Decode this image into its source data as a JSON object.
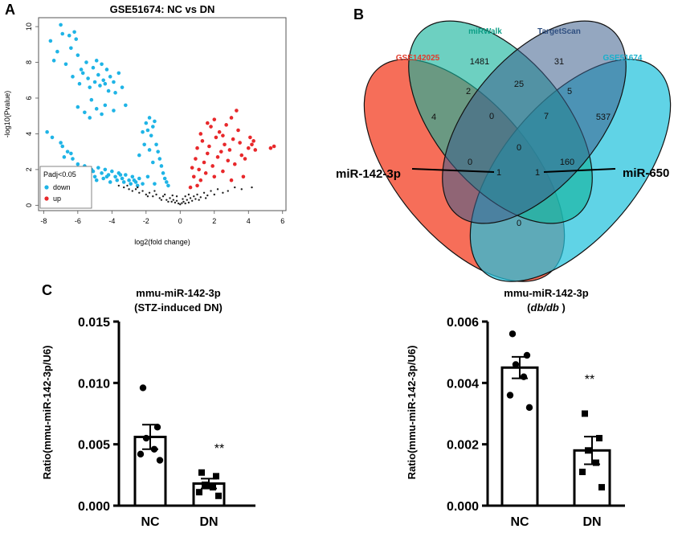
{
  "panels": {
    "a": "A",
    "b": "B",
    "c": "C"
  },
  "chart_data": [
    {
      "id": "volcano",
      "type": "scatter",
      "title": "GSE51674: NC vs DN",
      "xlabel": "log2(fold change)",
      "ylabel": "-log10(Pvalue)",
      "xlim": [
        -8.3,
        6.2
      ],
      "ylim": [
        -0.3,
        10.5
      ],
      "xticks": [
        -8,
        -6,
        -4,
        -2,
        0,
        2,
        4,
        6
      ],
      "yticks": [
        0,
        2,
        4,
        6,
        8,
        10
      ],
      "legend": {
        "title": "Padj<0.05",
        "position": "bottom-left",
        "entries": [
          {
            "label": "down",
            "color": "#1fb4e6"
          },
          {
            "label": "up",
            "color": "#e8282b"
          }
        ]
      },
      "series": [
        {
          "name": "down",
          "color": "#1fb4e6",
          "points": [
            [
              -7.6,
              9.2
            ],
            [
              -7.4,
              8.1
            ],
            [
              -7.2,
              8.6
            ],
            [
              -7.0,
              10.1
            ],
            [
              -6.9,
              9.6
            ],
            [
              -6.7,
              7.9
            ],
            [
              -6.5,
              9.5
            ],
            [
              -6.4,
              8.8
            ],
            [
              -6.2,
              9.7
            ],
            [
              -6.1,
              9.3
            ],
            [
              -6.0,
              8.4
            ],
            [
              -5.8,
              7.6
            ],
            [
              -6.3,
              7.2
            ],
            [
              -5.9,
              6.8
            ],
            [
              -5.7,
              7.4
            ],
            [
              -5.5,
              8.0
            ],
            [
              -5.4,
              7.1
            ],
            [
              -5.3,
              6.6
            ],
            [
              -5.1,
              7.7
            ],
            [
              -5.0,
              6.9
            ],
            [
              -4.9,
              8.1
            ],
            [
              -4.8,
              7.3
            ],
            [
              -4.7,
              6.7
            ],
            [
              -4.6,
              7.9
            ],
            [
              -4.5,
              7.0
            ],
            [
              -4.4,
              6.8
            ],
            [
              -4.3,
              7.6
            ],
            [
              -4.2,
              6.4
            ],
            [
              -4.1,
              7.2
            ],
            [
              -3.9,
              6.9
            ],
            [
              -3.8,
              6.3
            ],
            [
              -3.6,
              7.4
            ],
            [
              -3.4,
              6.6
            ],
            [
              -3.2,
              5.6
            ],
            [
              -5.2,
              5.9
            ],
            [
              -4.9,
              5.4
            ],
            [
              -4.6,
              5.1
            ],
            [
              -6.0,
              5.5
            ],
            [
              -5.6,
              5.2
            ],
            [
              -5.3,
              4.9
            ],
            [
              -4.4,
              5.6
            ],
            [
              -3.9,
              5.3
            ],
            [
              -2.0,
              4.6
            ],
            [
              -1.8,
              4.9
            ],
            [
              -1.6,
              4.4
            ],
            [
              -1.9,
              4.2
            ],
            [
              -1.5,
              4.7
            ],
            [
              -1.7,
              3.9
            ],
            [
              -2.2,
              4.1
            ],
            [
              -1.4,
              3.4
            ],
            [
              -1.3,
              3.0
            ],
            [
              -1.2,
              2.6
            ],
            [
              -1.1,
              2.2
            ],
            [
              -1.0,
              1.8
            ],
            [
              -0.9,
              1.5
            ],
            [
              -0.8,
              1.3
            ],
            [
              -0.7,
              1.1
            ],
            [
              -1.6,
              2.4
            ],
            [
              -1.8,
              3.1
            ],
            [
              -2.1,
              3.4
            ],
            [
              -2.4,
              2.8
            ],
            [
              -7.8,
              4.1
            ],
            [
              -7.5,
              3.8
            ],
            [
              -6.9,
              3.3
            ],
            [
              -6.6,
              3.0
            ],
            [
              -6.3,
              2.6
            ],
            [
              -6.0,
              2.3
            ],
            [
              -5.8,
              2.0
            ],
            [
              -5.6,
              2.2
            ],
            [
              -5.4,
              1.8
            ],
            [
              -5.2,
              2.0
            ],
            [
              -5.0,
              1.6
            ],
            [
              -4.8,
              2.1
            ],
            [
              -4.6,
              1.8
            ],
            [
              -4.4,
              2.0
            ],
            [
              -4.2,
              1.7
            ],
            [
              -4.0,
              1.9
            ],
            [
              -3.8,
              1.6
            ],
            [
              -3.6,
              1.8
            ],
            [
              -3.4,
              1.5
            ],
            [
              -3.2,
              1.7
            ],
            [
              -3.0,
              1.4
            ],
            [
              -2.8,
              1.6
            ],
            [
              -2.6,
              1.3
            ],
            [
              -2.4,
              1.5
            ],
            [
              -2.2,
              1.2
            ],
            [
              -5.9,
              1.7
            ],
            [
              -5.5,
              1.5
            ],
            [
              -4.9,
              1.4
            ],
            [
              -4.5,
              1.5
            ],
            [
              -4.1,
              1.3
            ],
            [
              -3.7,
              1.4
            ],
            [
              -3.3,
              1.3
            ],
            [
              -2.9,
              1.2
            ],
            [
              -2.5,
              1.1
            ],
            [
              -1.9,
              1.6
            ],
            [
              -1.5,
              1.2
            ],
            [
              -7.0,
              3.5
            ],
            [
              -6.4,
              2.9
            ],
            [
              -6.8,
              2.7
            ],
            [
              -5.1,
              1.9
            ],
            [
              -4.3,
              1.6
            ],
            [
              -3.5,
              1.7
            ],
            [
              -2.7,
              1.4
            ]
          ]
        },
        {
          "name": "up",
          "color": "#e8282b",
          "points": [
            [
              0.6,
              1.0
            ],
            [
              0.8,
              1.6
            ],
            [
              0.9,
              2.6
            ],
            [
              1.0,
              3.2
            ],
            [
              1.1,
              2.0
            ],
            [
              1.2,
              1.4
            ],
            [
              1.3,
              3.6
            ],
            [
              1.4,
              2.4
            ],
            [
              1.5,
              1.8
            ],
            [
              1.6,
              2.9
            ],
            [
              1.7,
              3.3
            ],
            [
              1.8,
              4.4
            ],
            [
              1.9,
              2.2
            ],
            [
              2.0,
              1.6
            ],
            [
              2.1,
              3.8
            ],
            [
              2.2,
              2.7
            ],
            [
              2.3,
              4.1
            ],
            [
              2.4,
              3.0
            ],
            [
              2.5,
              1.9
            ],
            [
              2.6,
              3.4
            ],
            [
              2.7,
              4.5
            ],
            [
              2.8,
              2.5
            ],
            [
              2.9,
              3.1
            ],
            [
              3.0,
              4.9
            ],
            [
              3.1,
              3.7
            ],
            [
              3.2,
              2.3
            ],
            [
              3.3,
              5.3
            ],
            [
              3.4,
              4.2
            ],
            [
              3.5,
              3.5
            ],
            [
              3.6,
              2.8
            ],
            [
              3.7,
              1.6
            ],
            [
              3.8,
              2.6
            ],
            [
              4.0,
              3.2
            ],
            [
              4.1,
              3.8
            ],
            [
              4.2,
              3.4
            ],
            [
              4.3,
              3.6
            ],
            [
              4.4,
              3.1
            ],
            [
              5.3,
              3.2
            ],
            [
              5.5,
              3.3
            ],
            [
              0.7,
              2.1
            ],
            [
              1.2,
              4.0
            ],
            [
              1.6,
              4.6
            ],
            [
              2.0,
              4.8
            ],
            [
              2.5,
              3.9
            ],
            [
              3.0,
              1.4
            ],
            [
              1.0,
              1.1
            ]
          ]
        },
        {
          "name": "ns",
          "color": "#222222",
          "points": [
            [
              -3.6,
              1.1
            ],
            [
              -3.3,
              1.0
            ],
            [
              -3.0,
              0.9
            ],
            [
              -2.8,
              0.8
            ],
            [
              -2.6,
              0.9
            ],
            [
              -2.4,
              0.7
            ],
            [
              -2.2,
              0.8
            ],
            [
              -2.0,
              0.6
            ],
            [
              -1.8,
              0.7
            ],
            [
              -1.6,
              0.5
            ],
            [
              -1.4,
              0.6
            ],
            [
              -1.2,
              0.4
            ],
            [
              -1.0,
              0.5
            ],
            [
              -0.8,
              0.3
            ],
            [
              -0.6,
              0.4
            ],
            [
              -0.5,
              0.2
            ],
            [
              -0.4,
              0.3
            ],
            [
              -0.3,
              0.15
            ],
            [
              -0.2,
              0.25
            ],
            [
              -0.1,
              0.1
            ],
            [
              0.0,
              0.05
            ],
            [
              0.1,
              0.12
            ],
            [
              0.2,
              0.2
            ],
            [
              0.3,
              0.1
            ],
            [
              0.4,
              0.3
            ],
            [
              0.5,
              0.15
            ],
            [
              0.6,
              0.4
            ],
            [
              0.7,
              0.25
            ],
            [
              0.8,
              0.5
            ],
            [
              0.9,
              0.35
            ],
            [
              1.0,
              0.6
            ],
            [
              1.2,
              0.45
            ],
            [
              1.4,
              0.7
            ],
            [
              1.6,
              0.55
            ],
            [
              1.8,
              0.8
            ],
            [
              2.0,
              0.6
            ],
            [
              2.2,
              0.9
            ],
            [
              2.5,
              0.7
            ],
            [
              2.8,
              0.8
            ],
            [
              3.2,
              1.0
            ],
            [
              3.6,
              0.9
            ],
            [
              -1.1,
              0.3
            ],
            [
              -0.7,
              0.2
            ],
            [
              -0.9,
              0.6
            ],
            [
              -1.5,
              0.8
            ],
            [
              -1.9,
              0.5
            ],
            [
              0.3,
              0.5
            ],
            [
              0.5,
              0.6
            ],
            [
              1.1,
              0.3
            ],
            [
              1.5,
              0.4
            ],
            [
              -2.5,
              1.0
            ],
            [
              -3.1,
              1.1
            ],
            [
              -0.2,
              0.5
            ],
            [
              0.15,
              0.35
            ],
            [
              -0.45,
              0.55
            ],
            [
              4.2,
              1.0
            ]
          ]
        }
      ]
    },
    {
      "id": "venn",
      "type": "venn",
      "sets": [
        {
          "name": "GSE142025",
          "color": "#f5624b"
        },
        {
          "name": "miRWalk",
          "color": "#14b39b"
        },
        {
          "name": "TargetScan",
          "color": "#3d5e8c"
        },
        {
          "name": "GSE51674",
          "color": "#23c2dc"
        }
      ],
      "counts": {
        "miRWalk_only": "1481",
        "TargetScan_only": "31",
        "GSE51674_only": "537",
        "GSE142025_only": "4",
        "miRWalk_TargetScan": "25",
        "GSE142025_miRWalk": "2",
        "TargetScan_GSE51674": "5",
        "GSE142025_miRWalk_TargetScan": "0",
        "miRWalk_TargetScan_GSE51674": "7",
        "all_four": "0",
        "GSE142025_TargetScan": "0",
        "miRWalk_GSE51674": "160",
        "GSE142025_TargetScan_GSE51674": "1",
        "GSE142025_miRWalk_GSE51674": "1",
        "GSE142025_GSE51674": "0"
      },
      "annotations": [
        "miR-142-3p",
        "miR-650"
      ]
    },
    {
      "id": "bar_stz",
      "type": "bar",
      "title": "mmu-miR-142-3p",
      "subtitle": "(STZ-induced DN)",
      "ylabel": "Ratio(mmu-miR-142-3p/U6)",
      "categories": [
        "NC",
        "DN"
      ],
      "values": [
        0.0056,
        0.0018
      ],
      "sem": [
        0.001,
        0.0004
      ],
      "ylim": [
        0,
        0.015
      ],
      "yticks": [
        "0.000",
        "0.005",
        "0.010",
        "0.015"
      ],
      "ytick_values": [
        0,
        0.005,
        0.01,
        0.015
      ],
      "points": [
        [
          0.0096,
          0.0064,
          0.0055,
          0.0046,
          0.0042,
          0.0037
        ],
        [
          0.0027,
          0.0024,
          0.0017,
          0.0015,
          0.0011,
          0.0008
        ]
      ],
      "significance": "**"
    },
    {
      "id": "bar_dbdb",
      "type": "bar",
      "title": "mmu-miR-142-3p",
      "subtitle_pre": "(",
      "subtitle_italic": "db/db",
      "subtitle_post": " )",
      "ylabel": "Ratio(mmu-miR-142-3p/U6)",
      "categories": [
        "NC",
        "DN"
      ],
      "values": [
        0.0045,
        0.0018
      ],
      "sem": [
        0.00035,
        0.00045
      ],
      "ylim": [
        0,
        0.006
      ],
      "yticks": [
        "0.000",
        "0.002",
        "0.004",
        "0.006"
      ],
      "ytick_values": [
        0,
        0.002,
        0.004,
        0.006
      ],
      "points": [
        [
          0.0056,
          0.0049,
          0.0046,
          0.0042,
          0.0036,
          0.0032
        ],
        [
          0.003,
          0.0022,
          0.0018,
          0.0014,
          0.0011,
          0.0006
        ]
      ],
      "significance": "**"
    }
  ]
}
